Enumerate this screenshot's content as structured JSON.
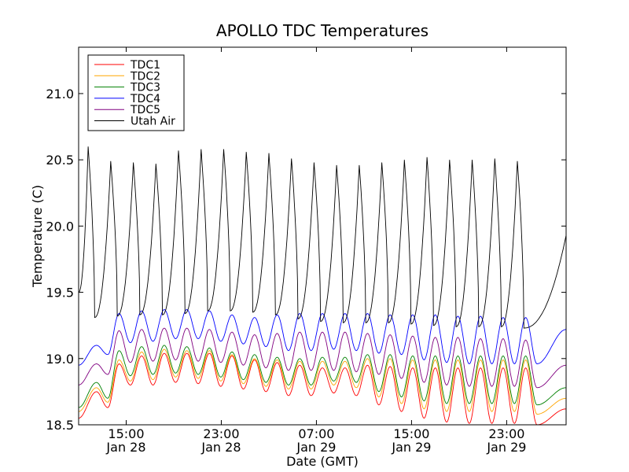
{
  "chart_data": {
    "type": "line",
    "title": "APOLLO TDC Temperatures",
    "xlabel": "Date (GMT)",
    "ylabel": "Temperature (C)",
    "ylim": [
      18.5,
      21.35
    ],
    "xlim_hours": [
      0,
      41
    ],
    "yticks": [
      "18.5",
      "19.0",
      "19.5",
      "20.0",
      "20.5",
      "21.0"
    ],
    "xticks": [
      {
        "hour": 4,
        "line1": "15:00",
        "line2": "Jan 28"
      },
      {
        "hour": 12,
        "line1": "23:00",
        "line2": "Jan 28"
      },
      {
        "hour": 20,
        "line1": "07:00",
        "line2": "Jan 29"
      },
      {
        "hour": 28,
        "line1": "15:00",
        "line2": "Jan 29"
      },
      {
        "hour": 36,
        "line1": "23:00",
        "line2": "Jan 29"
      }
    ],
    "cycle_hours": 1.91,
    "legend_position": "upper-left",
    "series": [
      {
        "name": "TDC1",
        "color": "#ff0000",
        "start_hour": 0,
        "start_value": 18.55,
        "peak_hours": [
          1.5,
          3.4,
          5.3,
          7.2,
          9.1,
          11.0,
          12.9,
          14.8,
          16.7,
          18.6,
          20.5,
          22.4,
          24.3,
          26.2,
          28.1,
          30.0,
          31.9,
          33.8,
          35.7,
          37.6
        ],
        "peak_values": [
          18.75,
          18.96,
          19.02,
          19.04,
          19.04,
          19.04,
          19.02,
          18.99,
          18.97,
          18.95,
          18.93,
          18.93,
          18.95,
          18.94,
          18.93,
          18.93,
          18.93,
          18.93,
          18.93,
          18.93
        ],
        "trough_values": [
          18.63,
          18.8,
          18.8,
          18.82,
          18.81,
          18.79,
          18.77,
          18.75,
          18.72,
          18.72,
          18.74,
          18.72,
          18.65,
          18.6,
          18.55,
          18.52,
          18.51,
          18.51,
          18.51,
          18.5
        ],
        "end_value": 18.62
      },
      {
        "name": "TDC2",
        "color": "#ffa500",
        "start_hour": 0,
        "start_value": 18.6,
        "peak_hours": [
          1.5,
          3.4,
          5.3,
          7.2,
          9.1,
          11.0,
          12.9,
          14.8,
          16.7,
          18.6,
          20.5,
          22.4,
          24.3,
          26.2,
          28.1,
          30.0,
          31.9,
          33.8,
          35.7,
          37.6
        ],
        "peak_values": [
          18.78,
          18.99,
          19.05,
          19.07,
          19.06,
          19.06,
          19.03,
          19.0,
          18.99,
          18.98,
          18.98,
          18.98,
          19.0,
          19.0,
          18.99,
          18.99,
          18.99,
          18.99,
          18.99,
          18.99
        ],
        "trough_values": [
          18.67,
          18.83,
          18.84,
          18.86,
          18.85,
          18.83,
          18.81,
          18.79,
          18.77,
          18.77,
          18.8,
          18.78,
          18.71,
          18.66,
          18.62,
          18.6,
          18.6,
          18.6,
          18.6,
          18.58
        ],
        "end_value": 18.7
      },
      {
        "name": "TDC3",
        "color": "#008000",
        "start_hour": 0,
        "start_value": 18.63,
        "peak_hours": [
          1.5,
          3.4,
          5.3,
          7.2,
          9.1,
          11.0,
          12.9,
          14.8,
          16.7,
          18.6,
          20.5,
          22.4,
          24.3,
          26.2,
          28.1,
          30.0,
          31.9,
          33.8,
          35.7,
          37.6
        ],
        "peak_values": [
          18.82,
          19.06,
          19.09,
          19.1,
          19.09,
          19.08,
          19.05,
          19.03,
          19.01,
          19.0,
          19.01,
          19.01,
          19.03,
          19.03,
          19.02,
          19.02,
          19.02,
          19.02,
          19.02,
          19.02
        ],
        "trough_values": [
          18.7,
          18.87,
          18.88,
          18.89,
          18.88,
          18.86,
          18.84,
          18.82,
          18.8,
          18.8,
          18.83,
          18.82,
          18.75,
          18.71,
          18.68,
          18.66,
          18.66,
          18.66,
          18.66,
          18.65
        ],
        "end_value": 18.78
      },
      {
        "name": "TDC4",
        "color": "#0000ff",
        "start_hour": 0,
        "start_value": 18.95,
        "peak_hours": [
          1.5,
          3.4,
          5.3,
          7.2,
          9.1,
          11.0,
          12.9,
          14.8,
          16.7,
          18.6,
          20.5,
          22.4,
          24.3,
          26.2,
          28.1,
          30.0,
          31.9,
          33.8,
          35.7,
          37.6
        ],
        "peak_values": [
          19.1,
          19.34,
          19.36,
          19.37,
          19.37,
          19.36,
          19.33,
          19.31,
          19.33,
          19.34,
          19.34,
          19.34,
          19.34,
          19.33,
          19.33,
          19.33,
          19.32,
          19.32,
          19.31,
          19.31
        ],
        "trough_values": [
          19.03,
          19.12,
          19.13,
          19.15,
          19.15,
          19.13,
          19.11,
          19.09,
          19.06,
          19.06,
          19.07,
          19.06,
          19.04,
          19.03,
          18.99,
          18.97,
          18.96,
          18.96,
          18.96,
          18.96
        ],
        "end_value": 19.22
      },
      {
        "name": "TDC5",
        "color": "#800080",
        "start_hour": 0,
        "start_value": 18.8,
        "peak_hours": [
          1.5,
          3.4,
          5.3,
          7.2,
          9.1,
          11.0,
          12.9,
          14.8,
          16.7,
          18.6,
          20.5,
          22.4,
          24.3,
          26.2,
          28.1,
          30.0,
          31.9,
          33.8,
          35.7,
          37.6
        ],
        "peak_values": [
          18.96,
          19.21,
          19.22,
          19.23,
          19.23,
          19.22,
          19.2,
          19.18,
          19.19,
          19.2,
          19.2,
          19.2,
          19.19,
          19.18,
          19.17,
          19.16,
          19.16,
          19.15,
          19.15,
          19.14
        ],
        "trough_values": [
          18.88,
          18.97,
          18.98,
          18.99,
          18.98,
          18.97,
          18.95,
          18.93,
          18.91,
          18.91,
          18.91,
          18.9,
          18.88,
          18.85,
          18.82,
          18.8,
          18.79,
          18.79,
          18.79,
          18.78
        ],
        "end_value": 18.95
      },
      {
        "name": "Utah Air",
        "color": "#000000",
        "start_hour": 0,
        "start_value": 19.5,
        "peak_hours": [
          0.8,
          2.7,
          4.6,
          6.5,
          8.4,
          10.3,
          12.2,
          14.1,
          16.0,
          17.9,
          19.8,
          21.7,
          23.6,
          25.5,
          27.4,
          29.3,
          31.2,
          33.1,
          35.0,
          36.9
        ],
        "peak_values": [
          20.6,
          20.49,
          20.48,
          20.47,
          20.57,
          20.58,
          20.58,
          20.56,
          20.55,
          20.51,
          20.48,
          20.46,
          20.46,
          20.48,
          20.5,
          20.52,
          20.5,
          20.5,
          20.51,
          20.49
        ],
        "trough_values": [
          19.31,
          19.32,
          19.33,
          19.33,
          19.34,
          19.36,
          19.36,
          19.35,
          19.33,
          19.3,
          19.28,
          19.27,
          19.27,
          19.27,
          19.26,
          19.25,
          19.24,
          19.24,
          19.24,
          19.23
        ],
        "end_value": 19.93
      }
    ]
  }
}
